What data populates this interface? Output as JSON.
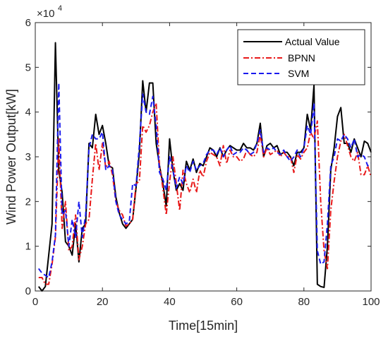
{
  "chart_data": {
    "type": "line",
    "xlabel": "Time[15min]",
    "ylabel": "Wind Power Output[kW]",
    "xlim": [
      0,
      100
    ],
    "ylim": [
      0,
      60000
    ],
    "x_ticks": [
      0,
      20,
      40,
      60,
      80,
      100
    ],
    "y_ticks": [
      0,
      10000,
      20000,
      30000,
      40000,
      50000,
      60000
    ],
    "y_tick_labels": [
      "0",
      "1",
      "2",
      "3",
      "4",
      "5",
      "6"
    ],
    "y_multiplier_base": "×10",
    "y_multiplier_exp": "4",
    "x_tick_labels": [
      "0",
      "20",
      "40",
      "60",
      "80",
      "100"
    ],
    "grid": false,
    "legend_position": "top-right",
    "series": [
      {
        "name": "Actual Value",
        "color": "#000000",
        "style": "solid",
        "x": [
          1,
          2,
          3,
          4,
          5,
          6,
          7,
          8,
          9,
          10,
          11,
          12,
          13,
          14,
          15,
          16,
          17,
          18,
          19,
          20,
          21,
          22,
          23,
          24,
          25,
          26,
          27,
          28,
          29,
          30,
          31,
          32,
          33,
          34,
          35,
          36,
          37,
          38,
          39,
          40,
          41,
          42,
          43,
          44,
          45,
          46,
          47,
          48,
          49,
          50,
          51,
          52,
          53,
          54,
          55,
          56,
          57,
          58,
          59,
          60,
          61,
          62,
          63,
          64,
          65,
          66,
          67,
          68,
          69,
          70,
          71,
          72,
          73,
          74,
          75,
          76,
          77,
          78,
          79,
          80,
          81,
          82,
          83,
          84,
          85,
          86,
          87,
          88,
          89,
          90,
          91,
          92,
          93,
          94,
          95,
          96,
          97,
          98,
          99,
          100
        ],
        "values": [
          1000,
          0,
          1000,
          8000,
          15000,
          55500,
          27000,
          22000,
          11000,
          10000,
          8000,
          15000,
          6500,
          14000,
          15000,
          33000,
          32000,
          39500,
          35000,
          37000,
          33000,
          28000,
          27500,
          21000,
          17500,
          15000,
          14000,
          15000,
          16000,
          23000,
          31000,
          47000,
          40000,
          46500,
          46500,
          33000,
          28000,
          24000,
          19000,
          34000,
          27000,
          22500,
          24000,
          22500,
          29000,
          27000,
          29500,
          26500,
          28500,
          28000,
          30000,
          32000,
          31500,
          30000,
          32000,
          30000,
          31500,
          32500,
          32000,
          31500,
          31500,
          33000,
          32000,
          32000,
          31500,
          33000,
          37500,
          30000,
          32500,
          33000,
          32000,
          32500,
          30500,
          31000,
          31000,
          30000,
          28000,
          31000,
          31000,
          32000,
          39500,
          36000,
          46000,
          1500,
          1000,
          800,
          10000,
          27000,
          32000,
          39000,
          41000,
          33000,
          33000,
          31000,
          34000,
          32000,
          30000,
          33500,
          33000,
          31000
        ]
      },
      {
        "name": "BPNN",
        "color": "#e8191a",
        "style": "dashdot",
        "x": [
          1,
          2,
          3,
          4,
          5,
          6,
          7,
          8,
          9,
          10,
          11,
          12,
          13,
          14,
          15,
          16,
          17,
          18,
          19,
          20,
          21,
          22,
          23,
          24,
          25,
          26,
          27,
          28,
          29,
          30,
          31,
          32,
          33,
          34,
          35,
          36,
          37,
          38,
          39,
          40,
          41,
          42,
          43,
          44,
          45,
          46,
          47,
          48,
          49,
          50,
          51,
          52,
          53,
          54,
          55,
          56,
          57,
          58,
          59,
          60,
          61,
          62,
          63,
          64,
          65,
          66,
          67,
          68,
          69,
          70,
          71,
          72,
          73,
          74,
          75,
          76,
          77,
          78,
          79,
          80,
          81,
          82,
          83,
          84,
          85,
          86,
          87,
          88,
          89,
          90,
          91,
          92,
          93,
          94,
          95,
          96,
          97,
          98,
          99,
          100
        ],
        "values": [
          3000,
          3000,
          1500,
          1500,
          6000,
          12000,
          34000,
          14000,
          20000,
          9000,
          10000,
          17000,
          7000,
          10000,
          15000,
          16000,
          25000,
          33000,
          27000,
          33000,
          27500,
          29000,
          26000,
          20000,
          18000,
          17000,
          14500,
          15000,
          16000,
          24000,
          24500,
          37000,
          35500,
          37000,
          40000,
          42000,
          28000,
          23000,
          17000,
          24500,
          30000,
          24000,
          18000,
          27000,
          24000,
          22000,
          25000,
          22000,
          27000,
          25500,
          29000,
          31000,
          30500,
          30000,
          28000,
          32500,
          28500,
          31500,
          30000,
          30000,
          29000,
          29500,
          31500,
          30500,
          30000,
          31000,
          35000,
          30000,
          32000,
          30500,
          31000,
          31500,
          30000,
          31000,
          30000,
          30000,
          26500,
          30500,
          29500,
          31000,
          32000,
          35500,
          34000,
          38000,
          20000,
          9000,
          5000,
          18000,
          24500,
          30000,
          33500,
          35000,
          32500,
          30000,
          29000,
          31000,
          26000,
          26000,
          28000,
          25500
        ]
      },
      {
        "name": "SVM",
        "color": "#1a1aee",
        "style": "dashed",
        "x": [
          1,
          2,
          3,
          4,
          5,
          6,
          7,
          8,
          9,
          10,
          11,
          12,
          13,
          14,
          15,
          16,
          17,
          18,
          19,
          20,
          21,
          22,
          23,
          24,
          25,
          26,
          27,
          28,
          29,
          30,
          31,
          32,
          33,
          34,
          35,
          36,
          37,
          38,
          39,
          40,
          41,
          42,
          43,
          44,
          45,
          46,
          47,
          48,
          49,
          50,
          51,
          52,
          53,
          54,
          55,
          56,
          57,
          58,
          59,
          60,
          61,
          62,
          63,
          64,
          65,
          66,
          67,
          68,
          69,
          70,
          71,
          72,
          73,
          74,
          75,
          76,
          77,
          78,
          79,
          80,
          81,
          82,
          83,
          84,
          85,
          86,
          87,
          88,
          89,
          90,
          91,
          92,
          93,
          94,
          95,
          96,
          97,
          98,
          99,
          100
        ],
        "values": [
          5000,
          4000,
          3500,
          3000,
          6500,
          12500,
          46500,
          17000,
          18000,
          10000,
          16000,
          12000,
          20000,
          12000,
          17000,
          32000,
          35000,
          34000,
          34000,
          35500,
          27000,
          28000,
          27000,
          20000,
          17000,
          16000,
          15000,
          15500,
          24000,
          23500,
          32500,
          44000,
          40000,
          39500,
          43500,
          37000,
          26500,
          25000,
          22500,
          30000,
          27000,
          23000,
          25500,
          24000,
          28000,
          26500,
          29000,
          27000,
          28000,
          28500,
          30500,
          31500,
          31500,
          30500,
          32000,
          30000,
          31500,
          32500,
          30500,
          31000,
          31000,
          32000,
          31500,
          30500,
          31000,
          33000,
          36000,
          31000,
          32000,
          31500,
          32000,
          31000,
          30500,
          31500,
          30000,
          29000,
          30000,
          31500,
          30000,
          32000,
          37000,
          35000,
          42000,
          9000,
          6000,
          6500,
          15000,
          28000,
          30000,
          34000,
          33500,
          35000,
          34000,
          32000,
          34000,
          30000,
          30500,
          30000,
          28000,
          28500
        ]
      }
    ]
  }
}
